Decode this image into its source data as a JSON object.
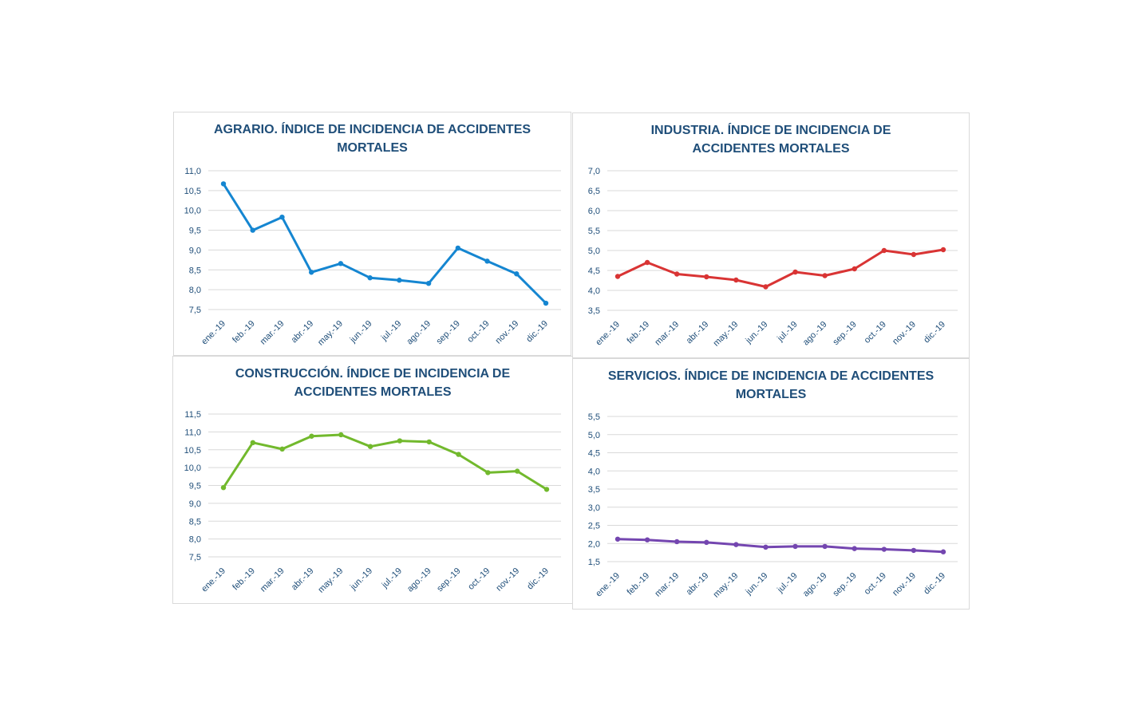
{
  "chart_data": [
    {
      "type": "line",
      "title": [
        "AGRARIO. ÍNDICE DE INCIDENCIA DE ACCIDENTES",
        "MORTALES"
      ],
      "categories": [
        "ene.-19",
        "feb.-19",
        "mar.-19",
        "abr.-19",
        "may.-19",
        "jun.-19",
        "jul.-19",
        "ago.-19",
        "sep.-19",
        "oct.-19",
        "nov.-19",
        "dic.-19"
      ],
      "values": [
        10.67,
        9.5,
        9.83,
        8.44,
        8.66,
        8.3,
        8.24,
        8.16,
        9.05,
        8.72,
        8.4,
        7.66
      ],
      "ylim": [
        7.5,
        11.0
      ],
      "yticks": [
        "11,0",
        "10,5",
        "10,0",
        "9,5",
        "9,0",
        "8,5",
        "8,0",
        "7,5"
      ],
      "ytick_values": [
        11.0,
        10.5,
        10.0,
        9.5,
        9.0,
        8.5,
        8.0,
        7.5
      ],
      "color": "#1586d1",
      "grid": true,
      "legend": "none"
    },
    {
      "type": "line",
      "title": [
        "INDUSTRIA. ÍNDICE DE INCIDENCIA DE",
        "ACCIDENTES MORTALES"
      ],
      "categories": [
        "ene.-19",
        "feb.-19",
        "mar.-19",
        "abr.-19",
        "may.-19",
        "jun.-19",
        "jul.-19",
        "ago.-19",
        "sep.-19",
        "oct.-19",
        "nov.-19",
        "dic.-19"
      ],
      "values": [
        4.35,
        4.7,
        4.41,
        4.34,
        4.26,
        4.09,
        4.46,
        4.37,
        4.54,
        5.0,
        4.9,
        5.02
      ],
      "ylim": [
        3.5,
        7.0
      ],
      "yticks": [
        "7,0",
        "6,5",
        "6,0",
        "5,5",
        "5,0",
        "4,5",
        "4,0",
        "3,5"
      ],
      "ytick_values": [
        7.0,
        6.5,
        6.0,
        5.5,
        5.0,
        4.5,
        4.0,
        3.5
      ],
      "color": "#d93434",
      "grid": true,
      "legend": "none"
    },
    {
      "type": "line",
      "title": [
        "CONSTRUCCIÓN. ÍNDICE DE INCIDENCIA DE",
        "ACCIDENTES MORTALES"
      ],
      "categories": [
        "ene.-19",
        "feb.-19",
        "mar.-19",
        "abr.-19",
        "may.-19",
        "jun.-19",
        "jul.-19",
        "ago.-19",
        "sep.-19",
        "oct.-19",
        "nov.-19",
        "dic.-19"
      ],
      "values": [
        9.44,
        10.7,
        10.52,
        10.88,
        10.92,
        10.59,
        10.75,
        10.72,
        10.37,
        9.86,
        9.9,
        9.39
      ],
      "ylim": [
        7.5,
        11.5
      ],
      "yticks": [
        "11,5",
        "11,0",
        "10,5",
        "10,0",
        "9,5",
        "9,0",
        "8,5",
        "8,0",
        "7,5"
      ],
      "ytick_values": [
        11.5,
        11.0,
        10.5,
        10.0,
        9.5,
        9.0,
        8.5,
        8.0,
        7.5
      ],
      "color": "#72b92d",
      "grid": true,
      "legend": "none"
    },
    {
      "type": "line",
      "title": [
        "SERVICIOS. ÍNDICE DE INCIDENCIA DE ACCIDENTES",
        "MORTALES"
      ],
      "categories": [
        "ene.-19",
        "feb.-19",
        "mar.-19",
        "abr.-19",
        "may.-19",
        "jun.-19",
        "jul.-19",
        "ago.-19",
        "sep.-19",
        "oct.-19",
        "nov.-19",
        "dic.-19"
      ],
      "values": [
        2.12,
        2.1,
        2.05,
        2.03,
        1.97,
        1.9,
        1.92,
        1.92,
        1.86,
        1.84,
        1.81,
        1.77
      ],
      "ylim": [
        1.5,
        5.5
      ],
      "yticks": [
        "5,5",
        "5,0",
        "4,5",
        "4,0",
        "3,5",
        "3,0",
        "2,5",
        "2,0",
        "1,5"
      ],
      "ytick_values": [
        5.5,
        5.0,
        4.5,
        4.0,
        3.5,
        3.0,
        2.5,
        2.0,
        1.5
      ],
      "color": "#7446b0",
      "grid": true,
      "legend": "none"
    }
  ],
  "colors": {
    "title": "#1f4e79",
    "axis_text": "#1f4e79",
    "grid": "#d9d9d9",
    "border": "#d9d9d9"
  }
}
